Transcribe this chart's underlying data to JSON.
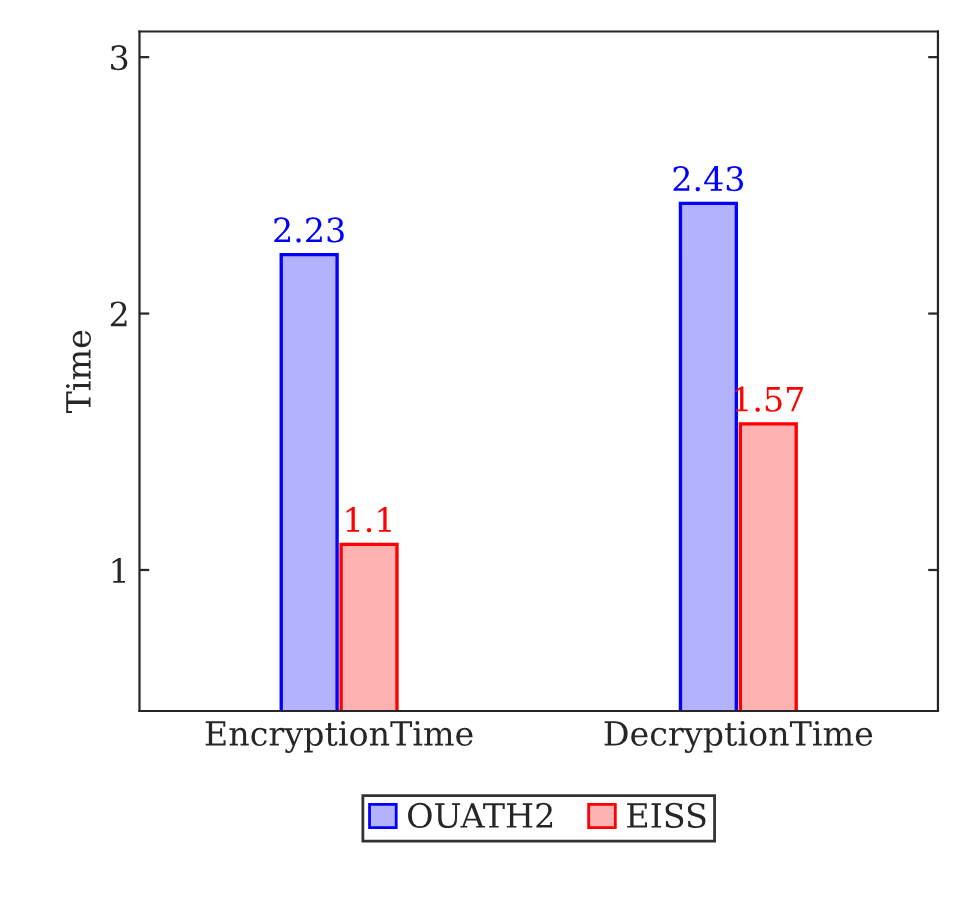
{
  "chart_data": {
    "type": "bar",
    "ylabel": "Time",
    "categories": [
      "EncryptionTime",
      "DecryptionTime"
    ],
    "series": [
      {
        "name": "OUATH2",
        "color": "#0000ff",
        "values": [
          2.23,
          2.43
        ]
      },
      {
        "name": "EISS",
        "color": "#ff0000",
        "values": [
          1.1,
          1.57
        ]
      }
    ],
    "ylim": [
      0.45,
      3.1
    ],
    "yticks": [
      1,
      2,
      3
    ],
    "data_labels": true,
    "legend": "bottom",
    "grid": false
  }
}
